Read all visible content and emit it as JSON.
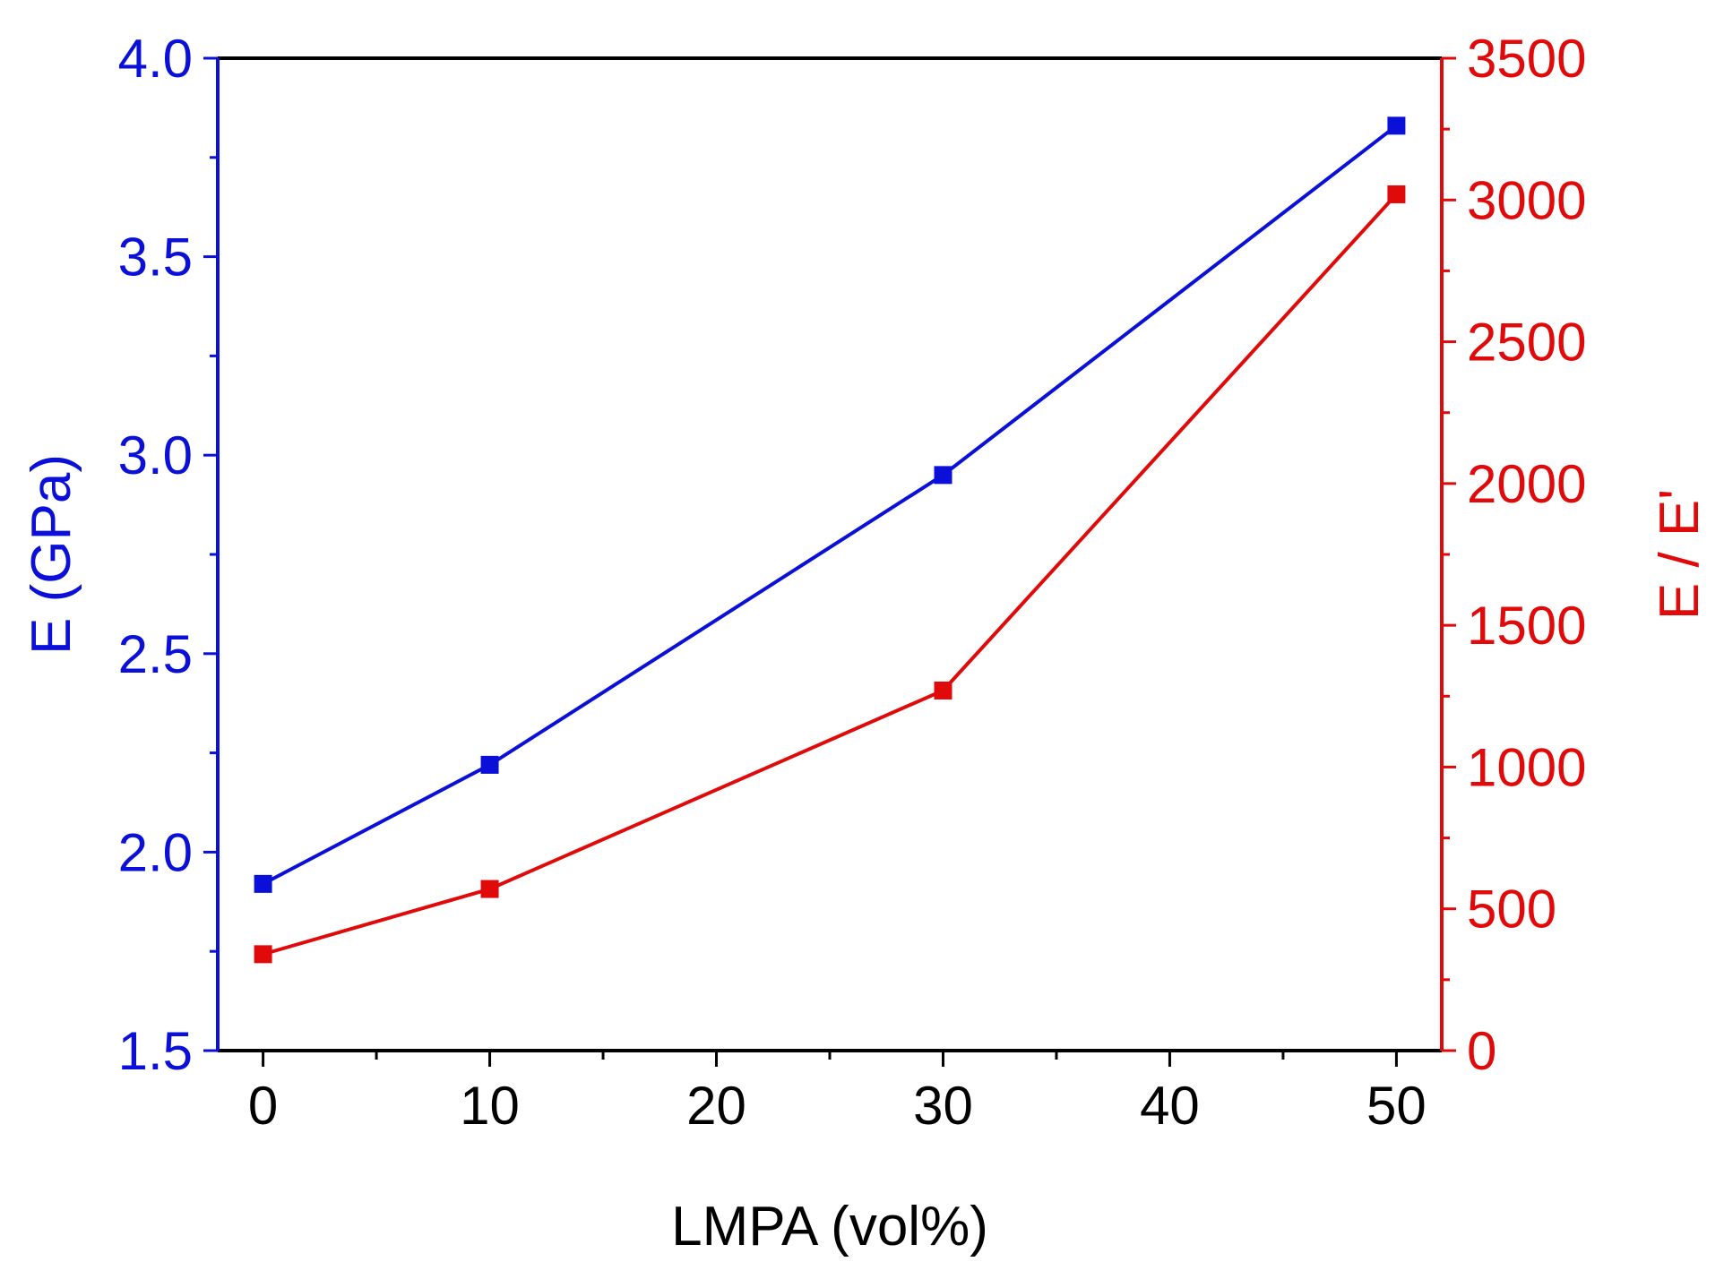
{
  "chart_data": {
    "type": "line",
    "xlabel": "LMPA (vol%)",
    "ylabel_left": "E (GPa)",
    "ylabel_right": "E / E'",
    "x": [
      0,
      10,
      30,
      50
    ],
    "xlim": [
      -2,
      52
    ],
    "ylim_left": [
      1.5,
      4.0
    ],
    "ylim_right": [
      0,
      3500
    ],
    "x_ticks": [
      "0",
      "10",
      "20",
      "30",
      "40",
      "50"
    ],
    "y_left_ticks": [
      "1.5",
      "2.0",
      "2.5",
      "3.0",
      "3.5",
      "4.0"
    ],
    "y_right_ticks": [
      "0",
      "500",
      "1000",
      "1500",
      "2000",
      "2500",
      "3000",
      "3500"
    ],
    "grid": false,
    "series": [
      {
        "axis": "left",
        "color": "#0a10d8",
        "marker": "square",
        "values": [
          1.92,
          2.22,
          2.95,
          3.83
        ]
      },
      {
        "axis": "right",
        "color": "#e00a0a",
        "marker": "square",
        "values": [
          340,
          570,
          1270,
          3020
        ]
      }
    ]
  }
}
